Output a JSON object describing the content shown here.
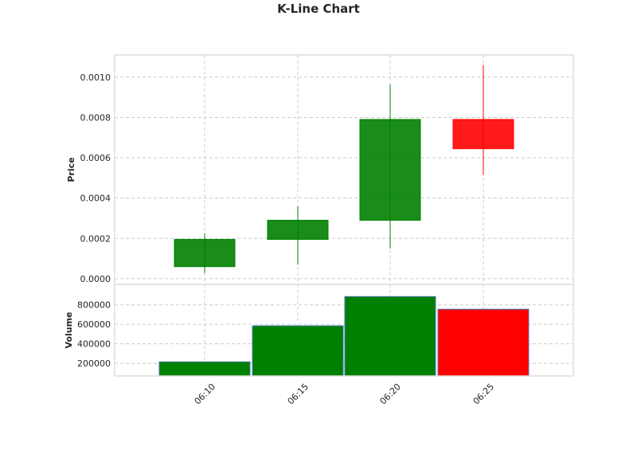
{
  "chart_data": {
    "type": "candlestick",
    "title": "K-Line Chart",
    "categories": [
      "06:10",
      "06:15",
      "06:20",
      "06:25"
    ],
    "ohlc": [
      {
        "open": 6e-05,
        "high": 0.000225,
        "low": 2.8e-05,
        "close": 0.000195
      },
      {
        "open": 0.000195,
        "high": 0.00036,
        "low": 7e-05,
        "close": 0.00029
      },
      {
        "open": 0.00029,
        "high": 0.000965,
        "low": 0.00015,
        "close": 0.00079
      },
      {
        "open": 0.00079,
        "high": 0.00106,
        "low": 0.000515,
        "close": 0.000645
      }
    ],
    "volume": [
      215000,
      585000,
      885000,
      755000
    ],
    "price_axis": {
      "label": "Price",
      "ylim": [
        -2.8e-05,
        0.00111
      ],
      "ticks": [
        "0.0000",
        "0.0002",
        "0.0004",
        "0.0006",
        "0.0008",
        "0.0010"
      ],
      "tick_values": [
        0,
        0.0002,
        0.0004,
        0.0006,
        0.0008,
        0.001
      ]
    },
    "volume_axis": {
      "label": "Volume",
      "ylim": [
        70000,
        1010000
      ],
      "ticks": [
        "200000",
        "400000",
        "600000",
        "800000"
      ],
      "tick_values": [
        200000,
        400000,
        600000,
        800000
      ]
    },
    "colors": {
      "up": "#008000",
      "down": "#ff0000",
      "grid": "#cccccc",
      "frame": "#dddddd"
    },
    "grid": true
  }
}
